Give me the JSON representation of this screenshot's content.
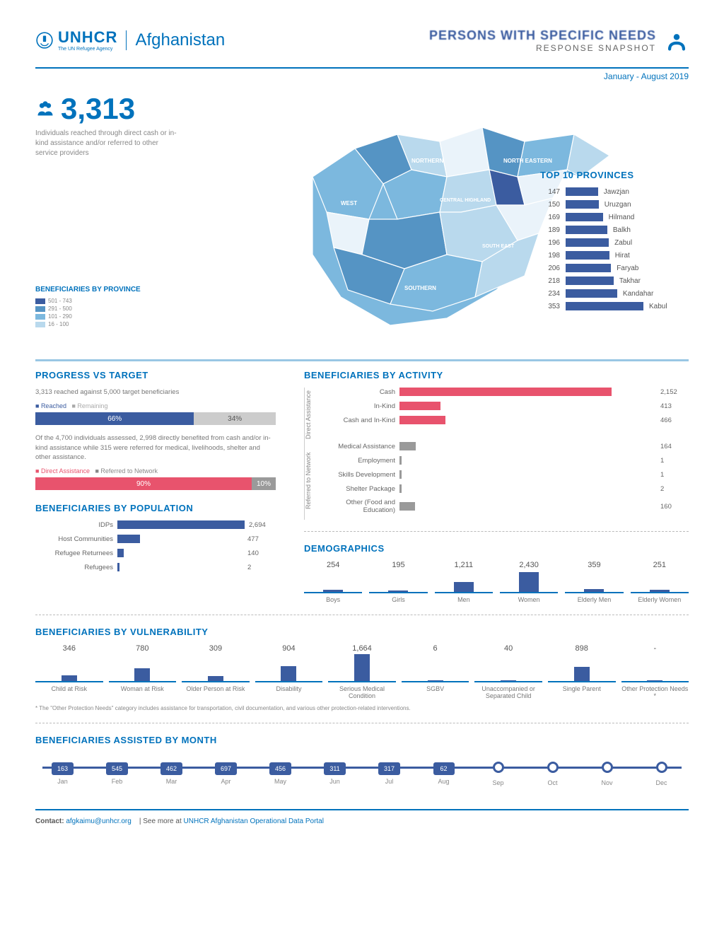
{
  "colors": {
    "primary": "#0072bc",
    "accent": "#3b5ca0",
    "reached": "#3b5ca0",
    "remaining": "#cccccc",
    "direct": "#e8536d",
    "referred": "#9a9a9a",
    "pop_bar": "#3b5ca0",
    "map_shades": [
      "#eaf3fa",
      "#b9d9ed",
      "#7cb8de",
      "#5594c4"
    ]
  },
  "header": {
    "org": "UNHCR",
    "org_sub": "The UN Refugee Agency",
    "country": "Afghanistan",
    "title_main": "PERSONS WITH SPECIFIC NEEDS",
    "title_sub": "RESPONSE SNAPSHOT",
    "date_range": "January - August 2019"
  },
  "hero": {
    "stat": "3,313",
    "desc": "Individuals reached through direct cash or in-kind assistance and/or referred to other service providers"
  },
  "map_legend": {
    "title": "BENEFICIARIES BY PROVINCE",
    "bins": [
      {
        "label": "501 - 743",
        "color": "#3b5ca0"
      },
      {
        "label": "291 - 500",
        "color": "#5594c4"
      },
      {
        "label": "101 - 290",
        "color": "#7cb8de"
      },
      {
        "label": "16 - 100",
        "color": "#b9d9ed"
      }
    ]
  },
  "top_provinces": {
    "title": "TOP 10 PROVINCES",
    "max": 353,
    "items": [
      {
        "value": 147,
        "name": "Jawzjan"
      },
      {
        "value": 150,
        "name": "Uruzgan"
      },
      {
        "value": 169,
        "name": "Hilmand"
      },
      {
        "value": 189,
        "name": "Balkh"
      },
      {
        "value": 196,
        "name": "Zabul"
      },
      {
        "value": 198,
        "name": "Hirat"
      },
      {
        "value": 206,
        "name": "Faryab"
      },
      {
        "value": 218,
        "name": "Takhar"
      },
      {
        "value": 234,
        "name": "Kandahar"
      },
      {
        "value": 353,
        "name": "Kabul"
      }
    ]
  },
  "progress": {
    "title": "PROGRESS VS TARGET",
    "desc": "3,313 reached against 5,000 target beneficiaries",
    "legend1": "Reached",
    "legend2": "Remaining",
    "bar1": {
      "reached": 66,
      "remaining": 34,
      "reached_label": "66%",
      "remaining_label": "34%"
    },
    "desc2": "Of the 4,700 individuals assessed, 2,998 directly benefited from cash and/or in-kind assistance while 315 were referred for medical, livelihoods, shelter and other assistance.",
    "legend3": "Direct Assistance",
    "legend4": "Referred to Network",
    "bar2": {
      "direct": 90,
      "referred": 10,
      "direct_label": "90%",
      "referred_label": "10%"
    }
  },
  "population": {
    "title": "BENEFICIARIES BY POPULATION",
    "max": 2694,
    "items": [
      {
        "label": "IDPs",
        "value": 2694,
        "value_label": "2,694"
      },
      {
        "label": "Host Communities",
        "value": 477,
        "value_label": "477"
      },
      {
        "label": "Refugee Returnees",
        "value": 140,
        "value_label": "140"
      },
      {
        "label": "Refugees",
        "value": 2,
        "value_label": "2"
      }
    ]
  },
  "activity": {
    "title": "BENEFICIARIES BY ACTIVITY",
    "max": 2152,
    "groups": [
      {
        "group": "Direct Assistance",
        "color": "#e8536d",
        "items": [
          {
            "label": "Cash",
            "value": 2152,
            "value_label": "2,152"
          },
          {
            "label": "In-Kind",
            "value": 413,
            "value_label": "413"
          },
          {
            "label": "Cash and In-Kind",
            "value": 466,
            "value_label": "466"
          }
        ]
      },
      {
        "group": "Referred to Network",
        "color": "#9a9a9a",
        "items": [
          {
            "label": "Medical Assistance",
            "value": 164,
            "value_label": "164"
          },
          {
            "label": "Employment",
            "value": 1,
            "value_label": "1"
          },
          {
            "label": "Skills Development",
            "value": 1,
            "value_label": "1"
          },
          {
            "label": "Shelter Package",
            "value": 2,
            "value_label": "2"
          },
          {
            "label": "Other (Food and Education)",
            "value": 160,
            "value_label": "160"
          }
        ]
      }
    ]
  },
  "demographics": {
    "title": "DEMOGRAPHICS",
    "max": 2430,
    "items": [
      {
        "label": "Boys",
        "value": 254,
        "value_label": "254"
      },
      {
        "label": "Girls",
        "value": 195,
        "value_label": "195"
      },
      {
        "label": "Men",
        "value": 1211,
        "value_label": "1,211"
      },
      {
        "label": "Women",
        "value": 2430,
        "value_label": "2,430"
      },
      {
        "label": "Elderly Men",
        "value": 359,
        "value_label": "359"
      },
      {
        "label": "Elderly Women",
        "value": 251,
        "value_label": "251"
      }
    ]
  },
  "vulnerability": {
    "title": "BENEFICIARIES BY VULNERABILITY",
    "max": 1664,
    "items": [
      {
        "label": "Child at Risk",
        "value": 346,
        "value_label": "346"
      },
      {
        "label": "Woman at Risk",
        "value": 780,
        "value_label": "780"
      },
      {
        "label": "Older Person at Risk",
        "value": 309,
        "value_label": "309"
      },
      {
        "label": "Disability",
        "value": 904,
        "value_label": "904"
      },
      {
        "label": "Serious Medical Condition",
        "value": 1664,
        "value_label": "1,664"
      },
      {
        "label": "SGBV",
        "value": 6,
        "value_label": "6"
      },
      {
        "label": "Unaccompanied or Separated Child",
        "value": 40,
        "value_label": "40"
      },
      {
        "label": "Single Parent",
        "value": 898,
        "value_label": "898"
      },
      {
        "label": "Other Protection Needs *",
        "value": 0,
        "value_label": "-"
      }
    ],
    "footnote": "* The \"Other Protection Needs\" category includes assistance for transportation, civil documentation, and various other protection-related interventions."
  },
  "month": {
    "title": "BENEFICIARIES ASSISTED BY MONTH",
    "items": [
      {
        "label": "Jan",
        "value": 163,
        "has": true
      },
      {
        "label": "Feb",
        "value": 545,
        "has": true
      },
      {
        "label": "Mar",
        "value": 462,
        "has": true
      },
      {
        "label": "Apr",
        "value": 697,
        "has": true
      },
      {
        "label": "May",
        "value": 456,
        "has": true
      },
      {
        "label": "Jun",
        "value": 311,
        "has": true
      },
      {
        "label": "Jul",
        "value": 317,
        "has": true
      },
      {
        "label": "Aug",
        "value": 62,
        "has": true
      },
      {
        "label": "Sep",
        "value": 0,
        "has": false
      },
      {
        "label": "Oct",
        "value": 0,
        "has": false
      },
      {
        "label": "Nov",
        "value": 0,
        "has": false
      },
      {
        "label": "Dec",
        "value": 0,
        "has": false
      }
    ]
  },
  "footer": {
    "contact_label": "Contact:",
    "contact_email": "afgkaimu@unhcr.org",
    "see_more": "| See more at",
    "portal": "UNHCR Afghanistan Operational Data Portal"
  }
}
